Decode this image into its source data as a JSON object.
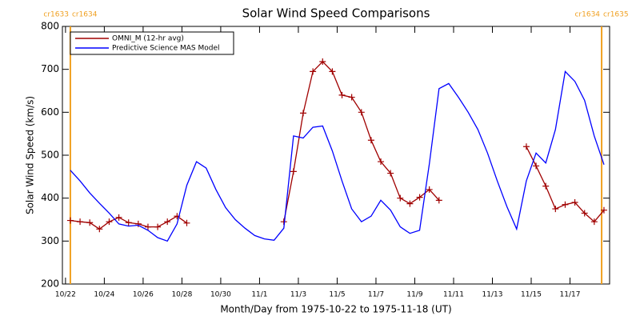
{
  "chart_data": {
    "type": "line",
    "title": "Solar Wind Speed Comparisons",
    "xlabel": "Month/Day from 1975-10-22 to 1975-11-18 (UT)",
    "ylabel": "Solar Wind Speed (km/s)",
    "xlim": [
      -0.16,
      28.04
    ],
    "ylim": [
      200,
      800
    ],
    "yticks": [
      200,
      300,
      400,
      500,
      600,
      700,
      800
    ],
    "xticks": [
      {
        "value": 0,
        "label": "10/22"
      },
      {
        "value": 2,
        "label": "10/24"
      },
      {
        "value": 4,
        "label": "10/26"
      },
      {
        "value": 6,
        "label": "10/28"
      },
      {
        "value": 8,
        "label": "10/30"
      },
      {
        "value": 10,
        "label": "11/1"
      },
      {
        "value": 12,
        "label": "11/3"
      },
      {
        "value": 14,
        "label": "11/5"
      },
      {
        "value": 16,
        "label": "11/7"
      },
      {
        "value": 18,
        "label": "11/9"
      },
      {
        "value": 20,
        "label": "11/11"
      },
      {
        "value": 22,
        "label": "11/13"
      },
      {
        "value": 24,
        "label": "11/15"
      },
      {
        "value": 26,
        "label": "11/17"
      }
    ],
    "boundaries": [
      {
        "x": 0.25,
        "left": "cr1633",
        "right": "cr1634"
      },
      {
        "x": 27.63,
        "left": "cr1634",
        "right": "cr1635"
      }
    ],
    "boundary_color": "#f0a020",
    "x": [
      0.25,
      0.75,
      1.25,
      1.75,
      2.25,
      2.75,
      3.25,
      3.75,
      4.25,
      4.75,
      5.25,
      5.75,
      6.25,
      6.75,
      7.25,
      7.75,
      8.25,
      8.75,
      9.25,
      9.75,
      10.25,
      10.75,
      11.25,
      11.75,
      12.25,
      12.75,
      13.25,
      13.75,
      14.25,
      14.75,
      15.25,
      15.75,
      16.25,
      16.75,
      17.25,
      17.75,
      18.25,
      18.75,
      19.25,
      19.75,
      20.25,
      20.75,
      21.25,
      21.75,
      22.25,
      22.75,
      23.25,
      23.75,
      24.25,
      24.75,
      25.25,
      25.75,
      26.25,
      26.75,
      27.25,
      27.75
    ],
    "series": [
      {
        "name": "OMNI_M (12-hr avg)",
        "color": "#a00000",
        "markers": true,
        "values": [
          348,
          345,
          343,
          328,
          345,
          355,
          343,
          340,
          333,
          333,
          345,
          358,
          342,
          null,
          null,
          null,
          null,
          null,
          null,
          null,
          null,
          null,
          345,
          462,
          598,
          695,
          718,
          695,
          640,
          635,
          600,
          535,
          485,
          458,
          400,
          387,
          402,
          420,
          395,
          null,
          null,
          null,
          null,
          null,
          null,
          null,
          null,
          520,
          475,
          428,
          375,
          385,
          390,
          365,
          345,
          372
        ]
      },
      {
        "name": "Predictive Science MAS Model",
        "color": "#0000ff",
        "markers": false,
        "values": [
          465,
          440,
          412,
          388,
          365,
          340,
          335,
          337,
          325,
          308,
          300,
          340,
          430,
          485,
          470,
          420,
          378,
          350,
          330,
          313,
          305,
          302,
          330,
          545,
          540,
          565,
          568,
          510,
          440,
          375,
          345,
          358,
          395,
          372,
          333,
          318,
          325,
          480,
          655,
          667,
          635,
          600,
          560,
          505,
          440,
          380,
          328,
          440,
          505,
          482,
          560,
          695,
          672,
          628,
          545,
          478
        ]
      }
    ]
  }
}
